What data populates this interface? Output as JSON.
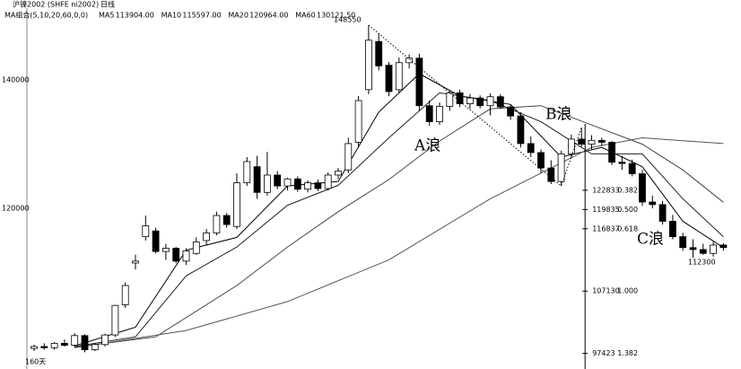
{
  "chart_data": {
    "type": "candlestick",
    "header": {
      "symbol": "沪镍2002 (SHFE ni2002)",
      "period": "日线",
      "ma_group": "MA组合(5,10,20,60,0,0)",
      "ma_legend": [
        {
          "name": "MA5",
          "value": "113904.00"
        },
        {
          "name": "MA10",
          "value": "115597.00"
        },
        {
          "name": "MA20",
          "value": "120964.00"
        },
        {
          "name": "MA60",
          "value": "130121.50"
        }
      ]
    },
    "footer": "160天",
    "ylim": [
      95000,
      151200
    ],
    "yticks": [
      120000,
      140000
    ],
    "open": [
      98200,
      98500,
      98300,
      99000,
      98700,
      100200,
      98000,
      98800,
      100300,
      105000,
      111500,
      115600,
      116500,
      113300,
      113800,
      111800,
      113000,
      115000,
      116200,
      118900,
      117200,
      124000,
      126500,
      122500,
      125200,
      123500,
      124600,
      123000,
      124000,
      123100,
      125200,
      126000,
      130300,
      138500,
      146000,
      142300,
      138500,
      142700,
      143400,
      136000,
      133500,
      135900,
      138000,
      136300,
      137200,
      136000,
      137400,
      135800,
      134400,
      130100,
      128700,
      126300,
      124200,
      128500,
      130800,
      130000,
      130600,
      130300,
      127200,
      127000,
      125400,
      121000,
      120600,
      118000,
      115600,
      113900,
      113600,
      113000,
      114300
    ],
    "high": [
      98800,
      99000,
      99200,
      99600,
      100600,
      100400,
      99000,
      100500,
      105000,
      108500,
      112800,
      118900,
      117000,
      114500,
      114000,
      113800,
      115500,
      116800,
      119500,
      119300,
      125500,
      128000,
      128200,
      128800,
      125800,
      124800,
      125000,
      124400,
      124500,
      125600,
      126300,
      131000,
      137500,
      148550,
      147200,
      142800,
      143500,
      144000,
      144100,
      136800,
      136500,
      138300,
      138500,
      137800,
      137600,
      137900,
      137800,
      136200,
      135000,
      131200,
      129200,
      127500,
      129000,
      131500,
      132600,
      131400,
      131000,
      130500,
      128200,
      127600,
      126000,
      122000,
      121200,
      119000,
      116200,
      115200,
      114500,
      114800,
      114600
    ],
    "low": [
      97800,
      98000,
      98000,
      98500,
      98400,
      97600,
      97800,
      98500,
      100000,
      104500,
      110500,
      115000,
      113000,
      112000,
      111500,
      111200,
      112800,
      114200,
      115800,
      117000,
      116800,
      123500,
      121500,
      122000,
      123000,
      122800,
      122600,
      122500,
      122700,
      122800,
      124600,
      125500,
      129500,
      137800,
      141500,
      137500,
      138000,
      141800,
      135200,
      132900,
      133000,
      135200,
      135800,
      135500,
      135600,
      134500,
      135500,
      133800,
      129500,
      128000,
      125500,
      123800,
      123500,
      127900,
      129600,
      129200,
      129800,
      126800,
      126000,
      125000,
      120400,
      120000,
      117500,
      115200,
      113400,
      112300,
      112800,
      112500,
      113400
    ],
    "close": [
      98500,
      98300,
      99000,
      98700,
      100200,
      98000,
      98800,
      100300,
      104900,
      108000,
      111800,
      117300,
      113300,
      113800,
      111800,
      113400,
      114800,
      116200,
      118900,
      117500,
      124000,
      127300,
      122500,
      125200,
      123500,
      124600,
      123000,
      124000,
      123100,
      125200,
      125800,
      130100,
      136800,
      146200,
      142200,
      138200,
      142700,
      143400,
      136000,
      133500,
      135900,
      138000,
      136300,
      137200,
      136000,
      137400,
      135800,
      134400,
      130100,
      128700,
      126300,
      124200,
      128500,
      130800,
      130000,
      130600,
      130300,
      127200,
      127000,
      125400,
      121000,
      120600,
      118000,
      115600,
      113900,
      113600,
      113000,
      114300,
      113904
    ],
    "ma_lines": [
      {
        "name": "MA5",
        "color": "#000000",
        "x": [
          4,
          10,
          15,
          20,
          25,
          30,
          34,
          38,
          42,
          47,
          52,
          56,
          60,
          64,
          68
        ],
        "values": [
          98600,
          101500,
          113500,
          115500,
          123500,
          124200,
          135000,
          141000,
          137500,
          136200,
          128000,
          129500,
          126500,
          118000,
          113904
        ]
      },
      {
        "name": "MA10",
        "color": "#222222",
        "x": [
          4,
          10,
          15,
          20,
          25,
          30,
          35,
          40,
          45,
          50,
          55,
          60,
          64,
          68
        ],
        "values": [
          98500,
          100000,
          109500,
          114000,
          120500,
          123600,
          131000,
          138000,
          136800,
          133500,
          128500,
          128500,
          121500,
          115597
        ]
      },
      {
        "name": "MA20",
        "color": "#444444",
        "x": [
          4,
          12,
          20,
          25,
          30,
          35,
          40,
          45,
          50,
          55,
          60,
          64,
          68
        ],
        "values": [
          98400,
          100000,
          108000,
          114000,
          119500,
          124500,
          130500,
          135500,
          136000,
          133000,
          130000,
          126000,
          120964
        ]
      },
      {
        "name": "MA60",
        "color": "#555555",
        "x": [
          4,
          15,
          25,
          35,
          45,
          55,
          60,
          68
        ],
        "values": [
          98300,
          101000,
          105500,
          112000,
          121500,
          129500,
          131000,
          130100
        ]
      }
    ],
    "fib_levels": [
      {
        "price": 122833,
        "ratio": "0.382"
      },
      {
        "price": 119835,
        "ratio": "0.500"
      },
      {
        "price": 116837,
        "ratio": "0.618"
      },
      {
        "price": 107130,
        "ratio": "1.000"
      },
      {
        "price": 97423,
        "ratio": "1.382"
      }
    ],
    "annotations": {
      "peak": "148550",
      "low": "112300",
      "wave_a": "A浪",
      "wave_b": "B浪",
      "wave_c": "C浪"
    }
  }
}
